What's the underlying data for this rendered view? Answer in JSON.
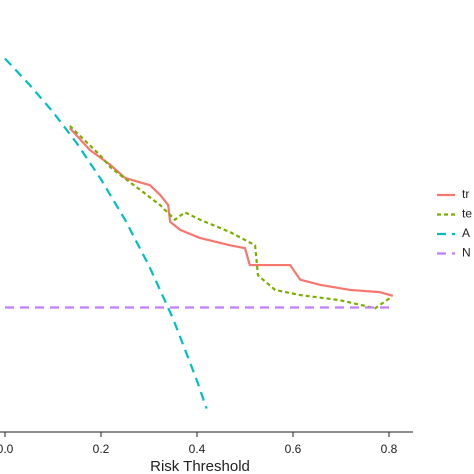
{
  "chart_data": {
    "type": "line",
    "x_label": "Risk Threshold",
    "xlim": [
      -0.01,
      0.85
    ],
    "ylim": [
      -0.17,
      0.42
    ],
    "xticks": [
      {
        "value": 0,
        "label": "0.0"
      },
      0.2,
      0.4,
      0.6,
      0.8
    ],
    "series": [
      {
        "name": "tr",
        "color": "#F8766D",
        "linestyle": "solid",
        "x": [
          0.135,
          0.177,
          0.219,
          0.25,
          0.281,
          0.302,
          0.323,
          0.34,
          0.344,
          0.365,
          0.406,
          0.469,
          0.5,
          0.51,
          0.594,
          0.615,
          0.656,
          0.719,
          0.781,
          0.808
        ],
        "values": [
          0.245,
          0.215,
          0.195,
          0.177,
          0.171,
          0.167,
          0.154,
          0.14,
          0.117,
          0.106,
          0.095,
          0.085,
          0.081,
          0.058,
          0.058,
          0.038,
          0.031,
          0.024,
          0.021,
          0.016
        ]
      },
      {
        "name": "te",
        "color": "#7CAE00",
        "linestyle": "dotted",
        "x": [
          0.135,
          0.198,
          0.219,
          0.24,
          0.281,
          0.323,
          0.354,
          0.375,
          0.406,
          0.469,
          0.521,
          0.527,
          0.563,
          0.615,
          0.698,
          0.771,
          0.802
        ],
        "values": [
          0.248,
          0.208,
          0.192,
          0.181,
          0.161,
          0.14,
          0.12,
          0.13,
          0.12,
          0.103,
          0.085,
          0.044,
          0.024,
          0.017,
          0.01,
          -0.001,
          0.013
        ]
      },
      {
        "name": "A",
        "color": "#00BFC4",
        "linestyle": "dashed",
        "x": [
          0,
          0.05,
          0.1,
          0.15,
          0.2,
          0.25,
          0.3,
          0.35,
          0.4,
          0.42
        ],
        "values": [
          0.34,
          0.305,
          0.267,
          0.224,
          0.175,
          0.12,
          0.057,
          -0.015,
          -0.1,
          -0.138
        ]
      },
      {
        "name": "N",
        "color": "#C77CFF",
        "linestyle": "dashed",
        "x": [
          0,
          0.8
        ],
        "values": [
          0,
          0
        ]
      }
    ]
  }
}
